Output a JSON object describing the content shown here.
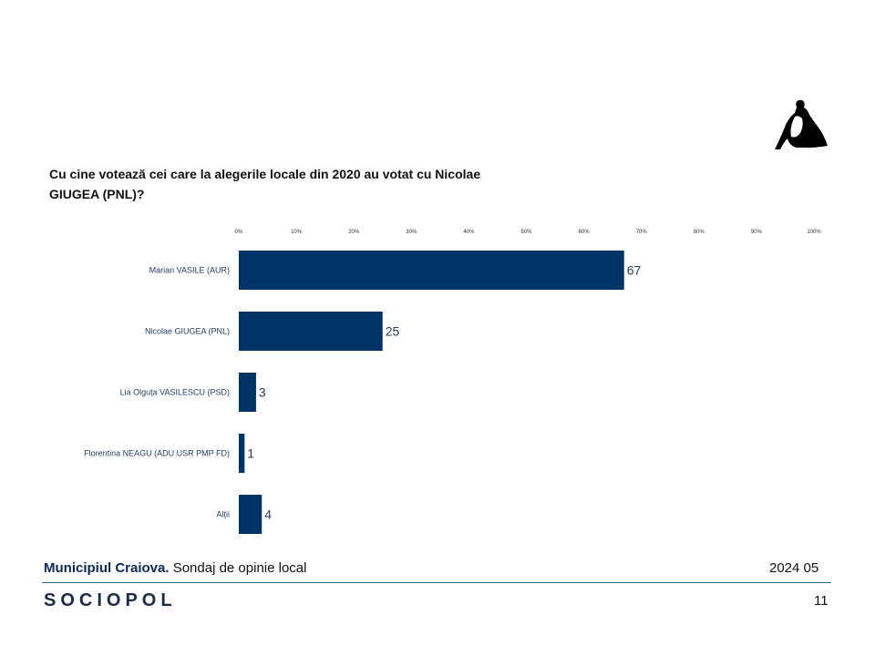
{
  "question": "Cu cine votează cei care la alegerile locale din 2020 au votat cu Nicolae GIUGEA (PNL)?",
  "footer": {
    "location_bold": "Municipiul Craiova.",
    "location_rest": " Sondaj de opinie local",
    "date": "2024 05",
    "brand": "SOCIOPOL",
    "page_number": "11"
  },
  "colors": {
    "bar": "#003366",
    "label": "#1f3a5f",
    "value": "#1f3a5f"
  },
  "chart_data": {
    "type": "bar",
    "orientation": "horizontal",
    "title": "Cu cine votează cei care la alegerile locale din 2020 au votat cu Nicolae GIUGEA (PNL)?",
    "categories": [
      "Marian VASILE (AUR)",
      "Nicolae GIUGEA (PNL)",
      "Lia Olguța VASILESCU (PSD)",
      "Florentina NEAGU (ADU USR PMP FD)",
      "Alții"
    ],
    "values": [
      67,
      25,
      3,
      1,
      4
    ],
    "xlim": [
      0,
      100
    ],
    "ticks": [
      "0%",
      "10%",
      "20%",
      "30%",
      "40%",
      "50%",
      "60%",
      "70%",
      "80%",
      "90%",
      "100%"
    ],
    "tick_values": [
      0,
      10,
      20,
      30,
      40,
      50,
      60,
      70,
      80,
      90,
      100
    ],
    "xlabel": "",
    "ylabel": "",
    "grid": false,
    "legend": "none"
  }
}
